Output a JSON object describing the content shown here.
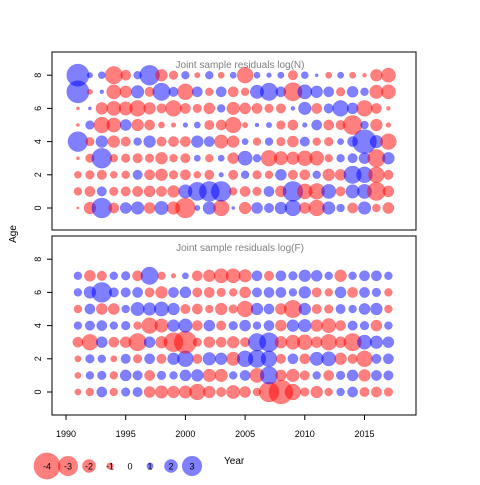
{
  "chart_data": [
    {
      "type": "scatter",
      "title": "Joint sample residuals log(N)",
      "ylabel": "Age",
      "xlim": [
        1989,
        2018
      ],
      "ylim": [
        -1,
        9
      ],
      "x_ticks": [
        "1990",
        "1995",
        "2000",
        "2005",
        "2010",
        "2015"
      ],
      "y_ticks": [
        "0",
        "2",
        "4",
        "6",
        "8"
      ],
      "x": [
        1991,
        1992,
        1993,
        1994,
        1995,
        1996,
        1997,
        1998,
        1999,
        2000,
        2001,
        2002,
        2003,
        2004,
        2005,
        2006,
        2007,
        2008,
        2009,
        2010,
        2011,
        2012,
        2013,
        2014,
        2015,
        2016,
        2017
      ],
      "ages": [
        0,
        1,
        2,
        3,
        4,
        5,
        6,
        7,
        8
      ],
      "residuals": [
        [
          -0.3,
          -1.5,
          2.5,
          -1.3,
          1.4,
          1.6,
          -1.4,
          1.7,
          -1.6,
          -2.5,
          0.7,
          1.6,
          -2.0,
          0.4,
          -1.5,
          1.4,
          1.2,
          1.5,
          2.0,
          -1.4,
          -2.0,
          1.6,
          1.0,
          -1.3,
          1.6,
          -1.0,
          -1.4
        ],
        [
          -1.0,
          -1.3,
          1.2,
          -1.1,
          -1.2,
          -1.3,
          -1.4,
          -1.3,
          -1.5,
          1.7,
          2.3,
          2.5,
          2.5,
          -1.0,
          -1.3,
          -1.1,
          1.3,
          -1.4,
          2.5,
          -1.9,
          -2.0,
          1.8,
          -1.2,
          1.7,
          1.8,
          -2.3,
          -1.4
        ],
        [
          -0.9,
          -1.1,
          -1.2,
          -0.9,
          -1.0,
          1.2,
          -1.3,
          -1.5,
          -1.1,
          -1.3,
          -0.9,
          -1.2,
          0.6,
          -1.2,
          1.0,
          -1.1,
          -1.0,
          1.4,
          -1.2,
          -1.3,
          1.0,
          -1.5,
          -1.4,
          2.2,
          2.0,
          -2.0,
          -1.2
        ],
        [
          -0.4,
          -1.1,
          2.5,
          -1.0,
          -1.1,
          -1.2,
          -1.1,
          -1.5,
          -1.0,
          -1.2,
          0.8,
          -1.0,
          0.8,
          -1.4,
          1.8,
          1.0,
          -2.0,
          -1.7,
          -1.6,
          -1.9,
          -1.8,
          -1.0,
          1.0,
          1.2,
          1.4,
          -2.2,
          1.5
        ],
        [
          2.5,
          -1.1,
          1.5,
          -1.5,
          -1.2,
          1.0,
          1.5,
          -1.2,
          -1.3,
          -1.3,
          1.5,
          1.3,
          -1.7,
          -1.5,
          0.8,
          -1.0,
          1.0,
          -1.1,
          -1.4,
          1.2,
          -1.0,
          -1.1,
          0.8,
          1.3,
          3.0,
          1.6,
          -2.0
        ],
        [
          -0.4,
          1.1,
          -2.0,
          -1.8,
          1.4,
          -1.5,
          -1.3,
          -0.8,
          -0.6,
          0.6,
          0.8,
          -1.2,
          -1.3,
          -2.0,
          -0.7,
          0.5,
          0.7,
          -1.1,
          -1.3,
          0.6,
          1.3,
          -1.3,
          -1.2,
          -2.4,
          1.0,
          -1.5,
          -0.6
        ],
        [
          -0.4,
          0.4,
          -1.5,
          -1.8,
          -1.7,
          -2.0,
          -1.5,
          -1.2,
          -2.0,
          -1.3,
          -1.1,
          -1.4,
          1.0,
          -1.6,
          -1.4,
          -1.3,
          -1.1,
          -1.2,
          0.5,
          1.6,
          -1.3,
          1.2,
          2.0,
          1.4,
          -2.0,
          -1.3,
          -0.5
        ],
        [
          2.8,
          -0.7,
          0.5,
          -1.8,
          -1.5,
          1.6,
          -1.2,
          2.2,
          1.2,
          -2.0,
          1.3,
          -1.0,
          1.3,
          -1.3,
          -1.0,
          1.7,
          2.2,
          1.3,
          -2.3,
          1.8,
          1.5,
          1.3,
          -1.1,
          1.4,
          1.0,
          -1.7,
          -1.8
        ],
        [
          2.8,
          0.7,
          0.9,
          -2.2,
          -1.3,
          1.0,
          2.5,
          -1.5,
          -1.1,
          1.0,
          -0.7,
          1.0,
          -0.8,
          0.8,
          -2.0,
          0.8,
          0.6,
          0.8,
          -1.2,
          0.9,
          0.4,
          -0.8,
          0.8,
          -0.8,
          -0.5,
          -1.5,
          -1.8
        ]
      ]
    },
    {
      "type": "scatter",
      "title": "Joint sample residuals log(F)",
      "ylabel": "Age",
      "xlabel": "Year",
      "xlim": [
        1989,
        2018
      ],
      "ylim": [
        -1,
        9
      ],
      "x_ticks": [
        "1990",
        "1995",
        "2000",
        "2005",
        "2010",
        "2015"
      ],
      "y_ticks": [
        "0",
        "2",
        "4",
        "6",
        "8"
      ],
      "x": [
        1991,
        1992,
        1993,
        1994,
        1995,
        1996,
        1997,
        1998,
        1999,
        2000,
        2001,
        2002,
        2003,
        2004,
        2005,
        2006,
        2007,
        2008,
        2009,
        2010,
        2011,
        2012,
        2013,
        2014,
        2015,
        2016,
        2017
      ],
      "ages": [
        0,
        1,
        2,
        3,
        4,
        5,
        6,
        7
      ],
      "residuals": [
        [
          -0.8,
          -1.0,
          1.3,
          -1.0,
          1.1,
          1.2,
          -1.4,
          -1.6,
          -1.5,
          -1.6,
          -2.0,
          -1.5,
          -1.2,
          -1.7,
          -1.4,
          -1.0,
          -2.5,
          -3.0,
          -2.0,
          -1.1,
          -1.5,
          -1.0,
          1.0,
          1.3,
          -1.2,
          -1.3,
          -1.1
        ],
        [
          -0.8,
          1.0,
          1.1,
          -1.0,
          1.4,
          1.2,
          -1.3,
          1.1,
          1.0,
          1.4,
          1.5,
          -1.6,
          -1.6,
          1.0,
          1.3,
          -1.8,
          2.2,
          -1.4,
          -1.6,
          -1.2,
          1.0,
          -1.3,
          1.1,
          1.4,
          -1.5,
          1.3,
          1.2
        ],
        [
          -0.8,
          1.1,
          1.0,
          -0.8,
          1.2,
          -1.1,
          1.3,
          -1.2,
          1.5,
          2.0,
          -1.2,
          1.6,
          1.5,
          -1.7,
          2.0,
          2.2,
          2.0,
          -1.2,
          1.3,
          -1.3,
          1.7,
          1.8,
          -1.5,
          -1.2,
          -2.0,
          1.2,
          1.3
        ],
        [
          -1.3,
          -2.0,
          1.4,
          -1.3,
          -1.4,
          -2.2,
          1.4,
          -1.5,
          -2.4,
          -2.8,
          -1.1,
          -1.4,
          -1.3,
          -1.5,
          -1.2,
          2.2,
          2.4,
          -1.5,
          -1.8,
          -1.9,
          -1.4,
          -2.0,
          -1.4,
          -2.2,
          1.8,
          1.6,
          1.4
        ],
        [
          1.0,
          1.2,
          1.3,
          1.0,
          1.1,
          -1.0,
          -2.0,
          -1.7,
          1.5,
          1.7,
          -1.3,
          1.4,
          -1.2,
          1.1,
          1.4,
          1.0,
          1.3,
          -1.4,
          1.5,
          1.6,
          -1.5,
          -1.8,
          -1.3,
          1.2,
          1.1,
          -1.4,
          1.0
        ],
        [
          -1.0,
          1.3,
          -1.4,
          -1.4,
          1.0,
          1.7,
          1.6,
          1.8,
          1.5,
          -1.2,
          -1.3,
          -1.0,
          -1.5,
          -1.1,
          -2.0,
          1.5,
          1.3,
          -1.4,
          -2.2,
          1.5,
          -1.2,
          -1.1,
          1.2,
          1.0,
          1.4,
          1.5,
          -1.0
        ],
        [
          1.0,
          1.5,
          2.5,
          1.2,
          1.2,
          1.3,
          -1.2,
          -1.5,
          1.3,
          1.4,
          -1.2,
          -1.3,
          -1.1,
          -1.0,
          -1.4,
          1.2,
          1.3,
          1.3,
          1.0,
          1.5,
          -1.2,
          -1.0,
          1.4,
          -1.3,
          1.3,
          1.1,
          -1.0
        ],
        [
          1.0,
          -1.4,
          -1.2,
          1.0,
          1.1,
          -1.3,
          2.2,
          -1.0,
          -0.6,
          0.8,
          -1.3,
          -1.5,
          -1.8,
          -1.8,
          -1.6,
          1.3,
          -1.2,
          1.3,
          1.1,
          1.5,
          1.4,
          1.0,
          -1.5,
          1.0,
          1.3,
          1.3,
          1.0
        ]
      ]
    }
  ],
  "legend": {
    "values": [
      -4,
      -3,
      -2,
      -1,
      0,
      1,
      2,
      3
    ],
    "labels": [
      "-4",
      "-3",
      "-2",
      "-1",
      "0",
      "1",
      "2",
      "3"
    ],
    "placement": "bottom-left"
  },
  "colors": {
    "negative": "#FF0000",
    "positive": "#0000FF",
    "opacity": 0.5
  }
}
